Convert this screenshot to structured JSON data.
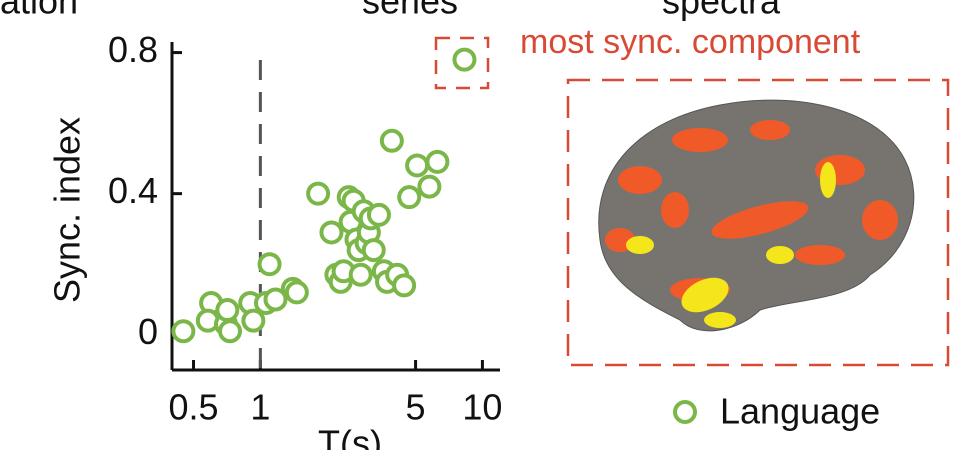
{
  "cropped_labels": [
    "ation",
    "series",
    "spectra"
  ],
  "chart_data": {
    "type": "scatter",
    "xlabel": "T(s)",
    "ylabel": "Sync. index",
    "annotation": "most sync. component",
    "log_x": true,
    "xlim": [
      0.4,
      12
    ],
    "ylim": [
      -0.1,
      0.83
    ],
    "xticks": [
      0.5,
      1,
      5,
      10
    ],
    "yticks": [
      0,
      0.4,
      0.8
    ],
    "reference_line_x": 1,
    "series": [
      {
        "name": "Language",
        "color": "#7ab648",
        "x": [
          0.45,
          0.6,
          0.58,
          0.7,
          0.71,
          0.73,
          0.9,
          0.93,
          1.06,
          1.1,
          1.17,
          1.4,
          1.46,
          1.82,
          2.09,
          2.2,
          2.3,
          2.37,
          2.5,
          2.55,
          2.63,
          2.71,
          2.77,
          2.83,
          2.92,
          3.01,
          3.08,
          3.14,
          3.24,
          3.42,
          3.6,
          3.72,
          3.91,
          4.13,
          4.44,
          4.68,
          5.08,
          5.77,
          6.27,
          8.3
        ],
        "values": [
          0.01,
          0.09,
          0.04,
          0.03,
          0.07,
          0.01,
          0.09,
          0.04,
          0.09,
          0.2,
          0.1,
          0.13,
          0.12,
          0.4,
          0.29,
          0.17,
          0.15,
          0.18,
          0.39,
          0.32,
          0.38,
          0.27,
          0.24,
          0.17,
          0.35,
          0.26,
          0.29,
          0.33,
          0.24,
          0.34,
          0.18,
          0.15,
          0.55,
          0.17,
          0.14,
          0.39,
          0.48,
          0.42,
          0.49,
          0.78
        ]
      }
    ]
  }
}
